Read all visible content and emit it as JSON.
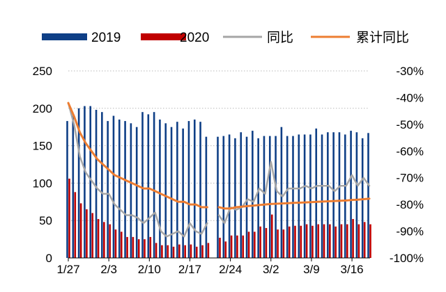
{
  "chart_data": {
    "type": "bar+line",
    "title": "",
    "xlabel": "",
    "ylabel_left": "",
    "ylabel_right": "",
    "legend_position": "top",
    "colors": {
      "y2019": "#0F3F86",
      "y2020": "#C00000",
      "yoy": "#A6A6A6",
      "cumulative_yoy": "#ED7D31",
      "grid": "#B8B8B8",
      "axis": "#000000",
      "text": "#000000"
    },
    "legend": [
      "2019",
      "2020",
      "同比",
      "累计同比"
    ],
    "left_axis": {
      "min": 0,
      "max": 250,
      "ticks": [
        "0",
        "50",
        "100",
        "150",
        "200",
        "250"
      ]
    },
    "right_axis": {
      "min": -100,
      "max": -30,
      "ticks": [
        "-100%",
        "-90%",
        "-80%",
        "-70%",
        "-60%",
        "-50%",
        "-40%",
        "-30%"
      ]
    },
    "x_tick_labels": [
      "1/27",
      "2/3",
      "2/10",
      "2/17",
      "2/24",
      "3/2",
      "3/9",
      "3/16"
    ],
    "days": [
      "1/27",
      "1/28",
      "1/29",
      "1/30",
      "1/31",
      "2/1",
      "2/2",
      "2/3",
      "2/4",
      "2/5",
      "2/6",
      "2/7",
      "2/8",
      "2/9",
      "2/10",
      "2/11",
      "2/12",
      "2/13",
      "2/14",
      "2/15",
      "2/16",
      "2/17",
      "2/18",
      "2/19",
      "2/20",
      "2/21",
      "2/22",
      "2/23",
      "2/24",
      "2/25",
      "2/26",
      "2/27",
      "2/28",
      "2/29",
      "3/1",
      "3/2",
      "3/3",
      "3/4",
      "3/5",
      "3/6",
      "3/7",
      "3/8",
      "3/9",
      "3/10",
      "3/11",
      "3/12",
      "3/13",
      "3/14",
      "3/15",
      "3/16",
      "3/17",
      "3/18",
      "3/19"
    ],
    "values_2019": [
      183,
      190,
      200,
      203,
      203,
      198,
      195,
      183,
      190,
      185,
      183,
      180,
      175,
      195,
      192,
      195,
      185,
      180,
      175,
      182,
      173,
      183,
      185,
      182,
      162,
      null,
      162,
      163,
      165,
      160,
      168,
      162,
      170,
      160,
      163,
      163,
      163,
      175,
      163,
      163,
      165,
      165,
      165,
      173,
      165,
      168,
      168,
      168,
      165,
      170,
      168,
      160,
      167
    ],
    "values_2020": [
      106,
      88,
      73,
      65,
      60,
      52,
      48,
      45,
      38,
      35,
      28,
      28,
      25,
      25,
      28,
      20,
      17,
      17,
      15,
      18,
      17,
      18,
      15,
      17,
      20,
      null,
      27,
      22,
      30,
      30,
      30,
      35,
      35,
      42,
      40,
      58,
      38,
      38,
      42,
      43,
      43,
      45,
      43,
      45,
      45,
      45,
      42,
      45,
      45,
      52,
      45,
      48,
      45
    ],
    "yoy_pct": [
      -42,
      -50,
      -62,
      -68,
      -71,
      -74,
      -76,
      -76,
      -80,
      -82,
      -84,
      -84,
      -85,
      -87,
      -85,
      -83,
      -90,
      -92,
      -91,
      -90,
      -92,
      -87,
      -90,
      -91,
      -87,
      null,
      -84,
      -87,
      -81,
      -82,
      -81,
      -78,
      -79,
      -74,
      -76,
      -64,
      -75,
      -77,
      -74,
      -74,
      -74,
      -73,
      -74,
      -73,
      -73,
      -73,
      -75,
      -73,
      -73,
      -69,
      -73,
      -70,
      -73
    ],
    "cumulative_yoy_pct": [
      -42,
      -47,
      -53,
      -57,
      -60,
      -63,
      -65,
      -67,
      -69,
      -70,
      -71,
      -72,
      -73,
      -74,
      -74,
      -75,
      -76,
      -77,
      -78,
      -79,
      -79,
      -80,
      -80,
      -81,
      -81,
      null,
      -81,
      -81.5,
      -81.5,
      -81,
      -80.8,
      -80.6,
      -80.4,
      -80.2,
      -80.0,
      -79.8,
      -79.7,
      -79.6,
      -79.5,
      -79.4,
      -79.3,
      -79.2,
      -79.1,
      -79.0,
      -78.9,
      -78.8,
      -78.7,
      -78.6,
      -78.5,
      -78.3,
      -78.2,
      -78.0,
      -77.8
    ]
  }
}
